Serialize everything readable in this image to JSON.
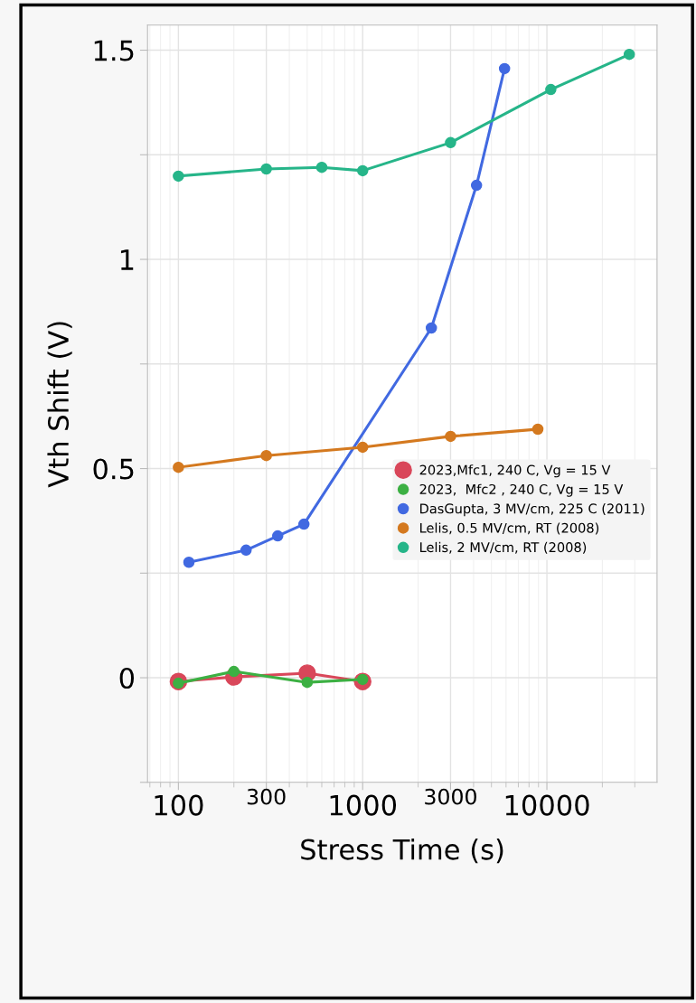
{
  "chart_data": {
    "type": "line",
    "xlabel": "Stress Time (s)",
    "ylabel": "Vth Shift (V)",
    "log": "x",
    "grid": true,
    "legend": "right",
    "marker": "circle",
    "line_style": "solid",
    "xlim": [
      68,
      39600
    ],
    "xticks": [
      100,
      300,
      1000,
      3000,
      10000
    ],
    "ylim": [
      -0.25,
      1.56
    ],
    "yticks": [
      {
        "value": -0.25,
        "label": null
      },
      0,
      {
        "value": 0.25,
        "label": null
      },
      0.5,
      {
        "value": 0.75,
        "label": null
      },
      1,
      {
        "value": 1.25,
        "label": null
      },
      1.5
    ],
    "series": [
      {
        "name": "2023,Mfc1, 240 C, Vg = 15 V",
        "color": "#d9475a",
        "x": [
          100,
          200,
          500,
          1000
        ],
        "values": [
          -0.009,
          0.002,
          0.011,
          -0.009
        ]
      },
      {
        "name": "2023,  Mfc2 , 240 C, Vg = 15 V",
        "color": "#3cb043",
        "x": [
          100,
          200,
          500,
          1000
        ],
        "values": [
          -0.013,
          0.015,
          -0.011,
          -0.004
        ]
      },
      {
        "name": "DasGupta, 3 MV/cm, 225 C (2011)",
        "color": "#4169e1",
        "x": [
          114,
          233,
          346,
          480,
          2360,
          4150,
          5890
        ],
        "values": [
          0.276,
          0.305,
          0.339,
          0.367,
          0.836,
          1.177,
          1.456
        ]
      },
      {
        "name": "Lelis, 0.5 MV/cm, RT (2008)",
        "color": "#d4791f",
        "x": [
          100,
          300,
          1000,
          3000,
          8930
        ],
        "values": [
          0.503,
          0.531,
          0.551,
          0.577,
          0.594
        ]
      },
      {
        "name": "Lelis, 2 MV/cm, RT (2008)",
        "color": "#26b589",
        "x": [
          100,
          300,
          600,
          1000,
          3000,
          10500,
          28000
        ],
        "values": [
          1.199,
          1.216,
          1.22,
          1.212,
          1.279,
          1.406,
          1.49
        ]
      }
    ]
  }
}
